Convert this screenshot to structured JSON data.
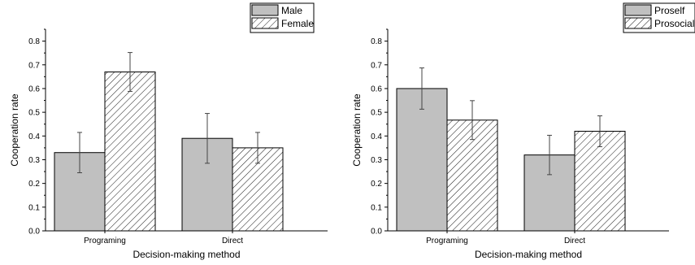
{
  "chart_data": [
    {
      "type": "bar",
      "categories": [
        "Programing",
        "Direct"
      ],
      "series": [
        {
          "name": "Male",
          "values": [
            0.33,
            0.39
          ],
          "errors": [
            0.085,
            0.105
          ],
          "fill": "#c0c0c0",
          "pattern": "solid"
        },
        {
          "name": "Female",
          "values": [
            0.67,
            0.35
          ],
          "errors": [
            0.082,
            0.065
          ],
          "fill": "#ffffff",
          "pattern": "hatch"
        }
      ],
      "xlabel": "Decision-making method",
      "ylabel": "Cooperation rate",
      "ylim": [
        0,
        0.85
      ],
      "yticks": [
        "0.0",
        "0.1",
        "0.2",
        "0.3",
        "0.4",
        "0.5",
        "0.6",
        "0.7",
        "0.8"
      ],
      "grid": false,
      "legend": "top-right"
    },
    {
      "type": "bar",
      "categories": [
        "Programing",
        "Direct"
      ],
      "series": [
        {
          "name": "Proself",
          "values": [
            0.6,
            0.32
          ],
          "errors": [
            0.087,
            0.083
          ],
          "fill": "#c0c0c0",
          "pattern": "solid"
        },
        {
          "name": "Prosocial",
          "values": [
            0.467,
            0.42
          ],
          "errors": [
            0.082,
            0.065
          ],
          "fill": "#ffffff",
          "pattern": "hatch"
        }
      ],
      "xlabel": "Decision-making method",
      "ylabel": "Cooperation rate",
      "ylim": [
        0,
        0.85
      ],
      "yticks": [
        "0.0",
        "0.1",
        "0.2",
        "0.3",
        "0.4",
        "0.5",
        "0.6",
        "0.7",
        "0.8"
      ],
      "grid": false,
      "legend": "top-right"
    }
  ],
  "colors": {
    "axis": "#000000",
    "bar_edge": "#000000",
    "error_bar": "#444444"
  }
}
